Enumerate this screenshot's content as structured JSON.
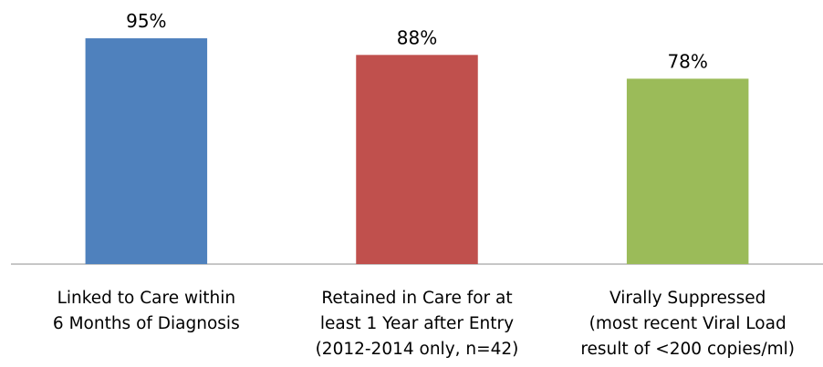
{
  "chart_data": {
    "type": "bar",
    "categories": [
      "Linked to Care within\n6 Months of Diagnosis",
      "Retained in Care for at\nleast 1 Year after Entry\n(2012-2014 only, n=42)",
      "Virally Suppressed\n(most recent Viral Load\nresult of <200 copies/ml)"
    ],
    "values": [
      95,
      88,
      78
    ],
    "value_labels": [
      "95%",
      "88%",
      "78%"
    ],
    "colors": [
      "#4f81bd",
      "#c0504d",
      "#9bbb59"
    ],
    "ylim": [
      0,
      100
    ]
  }
}
